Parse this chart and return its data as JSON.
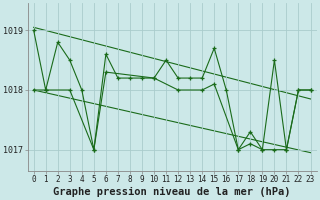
{
  "xlabel": "Graphe pression niveau de la mer (hPa)",
  "bg_color": "#cce8e8",
  "grid_color": "#aacccc",
  "line_color": "#1a6b1a",
  "line1_x": [
    0,
    1,
    2,
    3,
    4,
    5,
    6,
    7,
    8,
    9,
    10,
    11,
    12,
    13,
    14,
    15,
    16,
    17,
    18,
    19,
    20,
    21,
    22,
    23
  ],
  "line1_y": [
    1019.0,
    1018.0,
    1018.8,
    1018.5,
    1018.0,
    1017.0,
    1018.6,
    1018.2,
    1018.2,
    1018.2,
    1018.2,
    1018.5,
    1018.2,
    1018.2,
    1018.2,
    1018.7,
    1018.0,
    1017.0,
    1017.3,
    1017.0,
    1018.5,
    1017.0,
    1018.0,
    1018.0
  ],
  "line2_x": [
    0,
    1,
    3,
    5,
    6,
    10,
    12,
    14,
    15,
    17,
    18,
    19,
    20,
    21,
    22,
    23
  ],
  "line2_y": [
    1018.0,
    1018.0,
    1018.0,
    1017.0,
    1018.3,
    1018.2,
    1018.0,
    1018.0,
    1018.1,
    1017.0,
    1017.1,
    1017.0,
    1017.0,
    1017.0,
    1018.0,
    1018.0
  ],
  "trend1_x": [
    0,
    23
  ],
  "trend1_y": [
    1019.05,
    1017.85
  ],
  "trend2_x": [
    0,
    23
  ],
  "trend2_y": [
    1018.0,
    1016.95
  ],
  "xlim": [
    -0.5,
    23.5
  ],
  "ylim": [
    1016.65,
    1019.45
  ],
  "yticks": [
    1017,
    1018,
    1019
  ],
  "xticks": [
    0,
    1,
    2,
    3,
    4,
    5,
    6,
    7,
    8,
    9,
    10,
    11,
    12,
    13,
    14,
    15,
    16,
    17,
    18,
    19,
    20,
    21,
    22,
    23
  ],
  "tick_fontsize": 6,
  "label_fontsize": 7.5
}
